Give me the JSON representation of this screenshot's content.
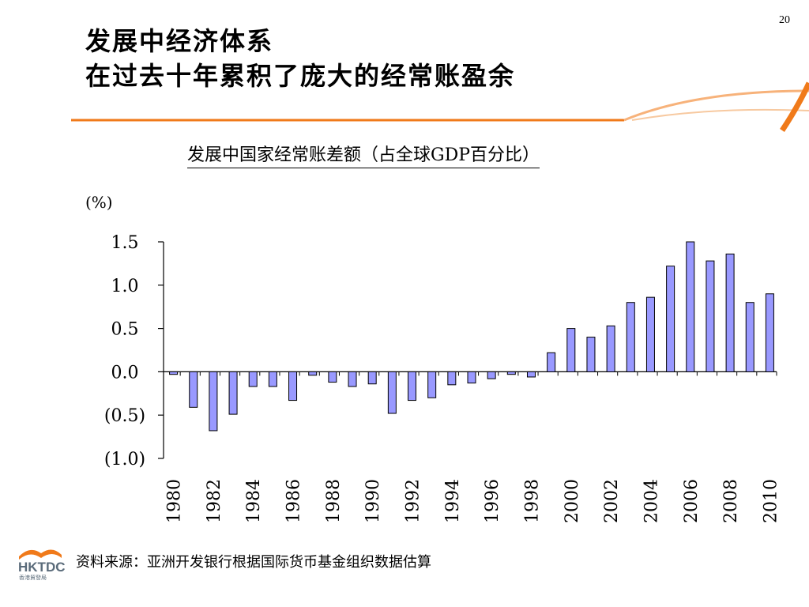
{
  "page_number": "20",
  "title_lines": [
    "发展中经济体系",
    "在过去十年累积了庞大的经常账盈余"
  ],
  "source": "资料来源：亚洲开发银行根据国际货币基金组织数据估算",
  "logo": {
    "text": "HKTDC",
    "subtext": "香港貿發局"
  },
  "colors": {
    "accent": "#f07a1a",
    "bar_fill": "#9999ff",
    "bar_stroke": "#000000"
  },
  "chart_data": {
    "type": "bar",
    "title": "发展中国家经常账差额（占全球GDP百分比）",
    "unit_label": "(%)",
    "ylim": [
      -1.0,
      1.5
    ],
    "ytick_values": [
      1.5,
      1.0,
      0.5,
      0.0,
      -0.5,
      -1.0
    ],
    "ytick_labels": [
      "1.5",
      "1.0",
      "0.5",
      "0.0",
      "(0.5)",
      "(1.0)"
    ],
    "xtick_labels": [
      "1980",
      "1982",
      "1984",
      "1986",
      "1988",
      "1990",
      "1992",
      "1994",
      "1996",
      "1998",
      "2000",
      "2002",
      "2004",
      "2006",
      "2008",
      "2010"
    ],
    "categories": [
      "1980",
      "1981",
      "1982",
      "1983",
      "1984",
      "1985",
      "1986",
      "1987",
      "1988",
      "1989",
      "1990",
      "1991",
      "1992",
      "1993",
      "1994",
      "1995",
      "1996",
      "1997",
      "1998",
      "1999",
      "2000",
      "2001",
      "2002",
      "2003",
      "2004",
      "2005",
      "2006",
      "2007",
      "2008",
      "2009",
      "2010"
    ],
    "values": [
      -0.03,
      -0.41,
      -0.68,
      -0.49,
      -0.17,
      -0.17,
      -0.33,
      -0.04,
      -0.12,
      -0.17,
      -0.14,
      -0.48,
      -0.33,
      -0.3,
      -0.15,
      -0.13,
      -0.08,
      -0.03,
      -0.06,
      0.22,
      0.5,
      0.4,
      0.53,
      0.8,
      0.86,
      1.22,
      1.5,
      1.28,
      1.36,
      0.8,
      0.9
    ],
    "grid": false,
    "legend": "none"
  }
}
